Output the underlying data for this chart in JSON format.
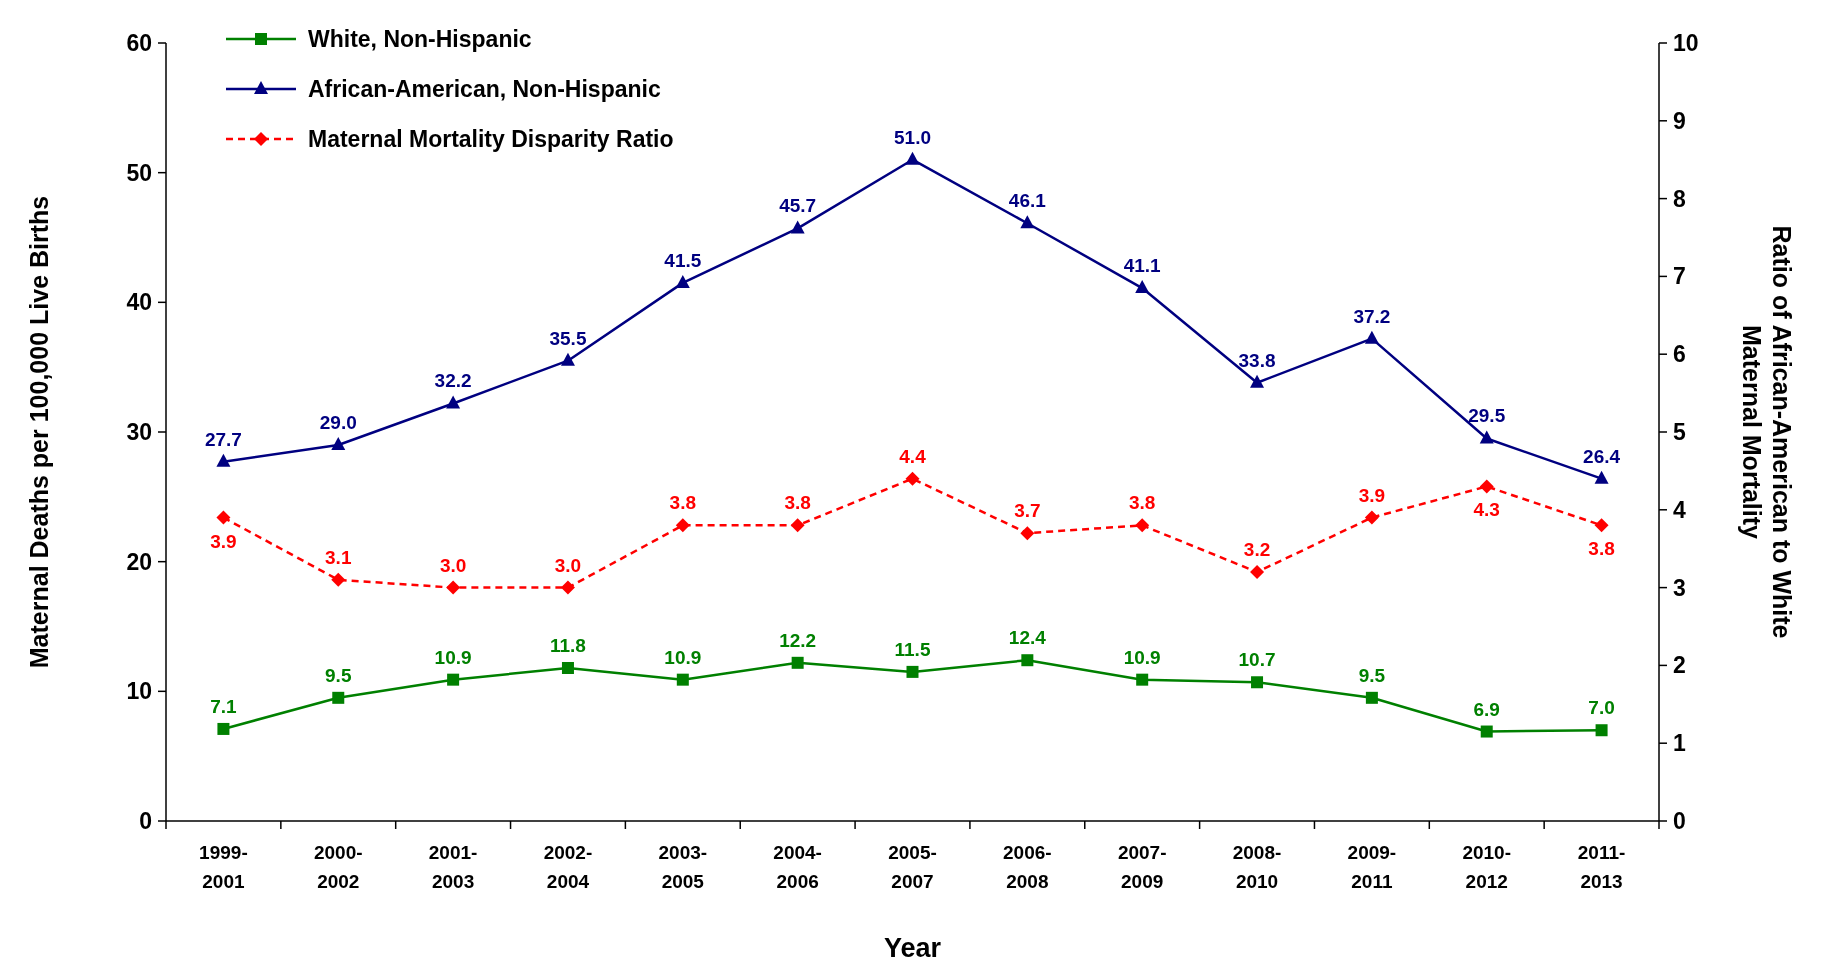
{
  "chart_data": {
    "type": "line",
    "xlabel": "Year",
    "ylabel": "Maternal Deaths per 100,000 Live Births",
    "y2label": "Ratio of African-American to White Maternal Mortality",
    "categories": [
      "1999-2001",
      "2000-2002",
      "2001-2003",
      "2002-2004",
      "2003-2005",
      "2004-2006",
      "2005-2007",
      "2006-2008",
      "2007-2009",
      "2008-2010",
      "2009-2011",
      "2010-2012",
      "2011-2013"
    ],
    "series": [
      {
        "name": "White, Non-Hispanic",
        "color": "#008000",
        "marker": "square",
        "line_style": "solid",
        "values": [
          7.1,
          9.5,
          10.9,
          11.8,
          10.9,
          12.2,
          11.5,
          12.4,
          10.9,
          10.7,
          9.5,
          6.9,
          7.0
        ],
        "value_labels": [
          "7.1",
          "9.5",
          "10.9",
          "11.8",
          "10.9",
          "12.2",
          "11.5",
          "12.4",
          "10.9",
          "10.7",
          "9.5",
          "6.9",
          "7.0"
        ]
      },
      {
        "name": "African-American, Non-Hispanic",
        "color": "#000080",
        "marker": "triangle",
        "line_style": "solid",
        "values": [
          27.7,
          29.0,
          32.2,
          35.5,
          41.5,
          45.7,
          51.0,
          46.1,
          41.1,
          33.8,
          37.2,
          29.5,
          26.4
        ],
        "value_labels": [
          "27.7",
          "29.0",
          "32.2",
          "35.5",
          "41.5",
          "45.7",
          "51.0",
          "46.1",
          "41.1",
          "33.8",
          "37.2",
          "29.5",
          "26.4"
        ]
      },
      {
        "name": "Maternal Mortality Disparity Ratio",
        "color": "#ff0000",
        "marker": "diamond",
        "line_style": "dashed",
        "axis": "y2",
        "values": [
          3.9,
          3.1,
          3.0,
          3.0,
          3.8,
          3.8,
          4.4,
          3.7,
          3.8,
          3.2,
          3.9,
          4.3,
          3.8
        ],
        "value_labels": [
          "3.9",
          "3.1",
          "3.0",
          "3.0",
          "3.8",
          "3.8",
          "4.4",
          "3.7",
          "3.8",
          "3.2",
          "3.9",
          "4.3",
          "3.8"
        ]
      }
    ],
    "ylim": [
      0,
      60
    ],
    "yticks": [
      0,
      10,
      20,
      30,
      40,
      50,
      60
    ],
    "y2lim": [
      0,
      10
    ],
    "y2ticks": [
      0,
      1,
      2,
      3,
      4,
      5,
      6,
      7,
      8,
      9,
      10
    ],
    "legend": "top left",
    "grid": false
  }
}
